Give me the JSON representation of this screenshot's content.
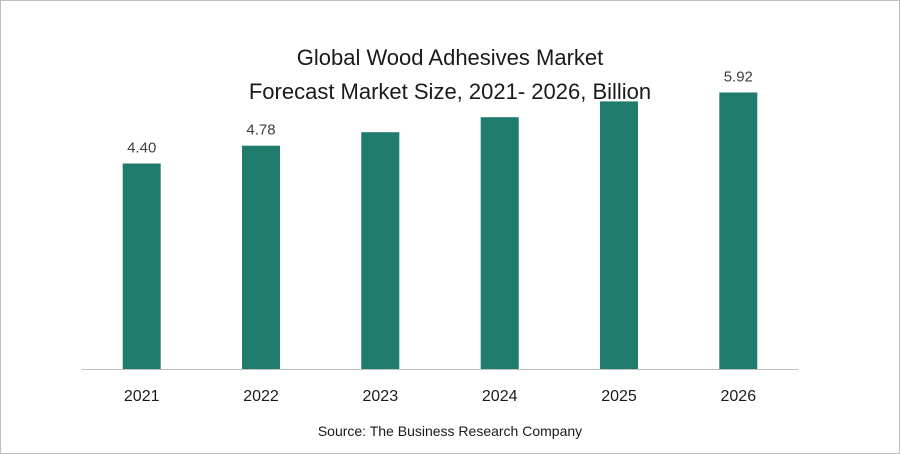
{
  "chart_data": {
    "type": "bar",
    "title": "Global Wood Adhesives Market",
    "subtitle": "Forecast Market Size, 2021- 2026, Billion",
    "categories": [
      "2021",
      "2022",
      "2023",
      "2024",
      "2025",
      "2026"
    ],
    "values": [
      4.4,
      4.78,
      5.07,
      5.39,
      5.73,
      5.92
    ],
    "data_labels": [
      "4.40",
      "4.78",
      "",
      "",
      "",
      "5.92"
    ],
    "ylim": [
      0,
      7.9
    ],
    "grid": false,
    "bar_color": "#1f7b6b"
  },
  "source": "Source: The Business Research Company"
}
